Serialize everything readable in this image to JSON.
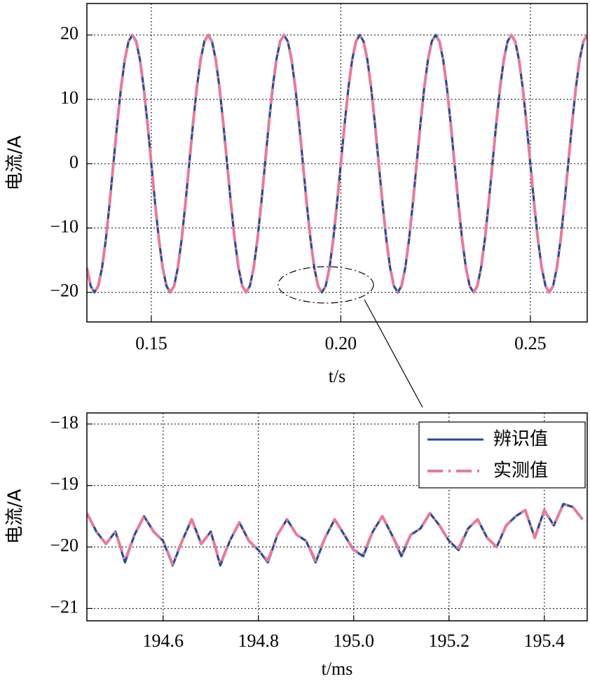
{
  "chart_data": [
    {
      "type": "line",
      "xlabel": "t/s",
      "ylabel": "电流/A",
      "x": [
        0.133,
        0.134,
        0.135,
        0.136,
        0.137,
        0.138,
        0.139,
        0.14,
        0.141,
        0.142,
        0.143,
        0.144,
        0.145,
        0.146,
        0.147,
        0.148,
        0.149,
        0.15,
        0.151,
        0.152,
        0.153,
        0.154,
        0.155,
        0.156,
        0.157,
        0.158,
        0.159,
        0.16,
        0.161,
        0.162,
        0.163,
        0.164,
        0.165,
        0.166,
        0.167,
        0.168,
        0.169,
        0.17,
        0.171,
        0.172,
        0.173,
        0.174,
        0.175,
        0.176,
        0.177,
        0.178,
        0.179,
        0.18,
        0.181,
        0.182,
        0.183,
        0.184,
        0.185,
        0.186,
        0.187,
        0.188,
        0.189,
        0.19,
        0.191,
        0.192,
        0.193,
        0.194,
        0.195,
        0.196,
        0.197,
        0.198,
        0.199,
        0.2,
        0.201,
        0.202,
        0.203,
        0.204,
        0.205,
        0.206,
        0.207,
        0.208,
        0.209,
        0.21,
        0.211,
        0.212,
        0.213,
        0.214,
        0.215,
        0.216,
        0.217,
        0.218,
        0.219,
        0.22,
        0.221,
        0.222,
        0.223,
        0.224,
        0.225,
        0.226,
        0.227,
        0.228,
        0.229,
        0.23,
        0.231,
        0.232,
        0.233,
        0.234,
        0.235,
        0.236,
        0.237,
        0.238,
        0.239,
        0.24,
        0.241,
        0.242,
        0.243,
        0.244,
        0.245,
        0.246,
        0.247,
        0.248,
        0.249,
        0.25,
        0.251,
        0.252,
        0.253,
        0.254,
        0.255,
        0.256,
        0.257,
        0.258,
        0.259,
        0.26,
        0.261,
        0.262,
        0.263,
        0.264,
        0.265
      ],
      "series": [
        {
          "color": "#1f4e96",
          "dashed": false,
          "values": [
            -16.18,
            -19.02,
            -20,
            -19.02,
            -16.18,
            -11.76,
            -6.18,
            0,
            6.18,
            11.76,
            16.18,
            19.02,
            20,
            19.02,
            16.18,
            11.76,
            6.18,
            0,
            -6.18,
            -11.76,
            -16.18,
            -19.02,
            -20,
            -19.02,
            -16.18,
            -11.76,
            -6.18,
            0,
            6.18,
            11.76,
            16.18,
            19.02,
            20,
            19.02,
            16.18,
            11.76,
            6.18,
            0,
            -6.18,
            -11.76,
            -16.18,
            -19.02,
            -20,
            -19.02,
            -16.18,
            -11.76,
            -6.18,
            0,
            6.18,
            11.76,
            16.18,
            19.02,
            20,
            19.02,
            16.18,
            11.76,
            6.18,
            0,
            -6.18,
            -11.76,
            -16.18,
            -19.02,
            -20,
            -19.02,
            -16.18,
            -11.76,
            -6.18,
            0,
            6.18,
            11.76,
            16.18,
            19.02,
            20,
            19.02,
            16.18,
            11.76,
            6.18,
            0,
            -6.18,
            -11.76,
            -16.18,
            -19.02,
            -20,
            -19.02,
            -16.18,
            -11.76,
            -6.18,
            0,
            6.18,
            11.76,
            16.18,
            19.02,
            20,
            19.02,
            16.18,
            11.76,
            6.18,
            0,
            -6.18,
            -11.76,
            -16.18,
            -19.02,
            -20,
            -19.02,
            -16.18,
            -11.76,
            -6.18,
            0,
            6.18,
            11.76,
            16.18,
            19.02,
            20,
            19.02,
            16.18,
            11.76,
            6.18,
            0,
            -6.18,
            -11.76,
            -16.18,
            -19.02,
            -20,
            -19.02,
            -16.18,
            -11.76,
            -6.18,
            0,
            6.18,
            11.76,
            16.18,
            19.02,
            20
          ]
        },
        {
          "color": "#e8799f",
          "dashed": true,
          "values": [
            -16.18,
            -19.02,
            -20,
            -19.02,
            -16.18,
            -11.76,
            -6.18,
            0,
            6.18,
            11.76,
            16.18,
            19.02,
            20,
            19.02,
            16.18,
            11.76,
            6.18,
            0,
            -6.18,
            -11.76,
            -16.18,
            -19.02,
            -20,
            -19.02,
            -16.18,
            -11.76,
            -6.18,
            0,
            6.18,
            11.76,
            16.18,
            19.02,
            20,
            19.02,
            16.18,
            11.76,
            6.18,
            0,
            -6.18,
            -11.76,
            -16.18,
            -19.02,
            -20,
            -19.02,
            -16.18,
            -11.76,
            -6.18,
            0,
            6.18,
            11.76,
            16.18,
            19.02,
            20,
            19.02,
            16.18,
            11.76,
            6.18,
            0,
            -6.18,
            -11.76,
            -16.18,
            -19.02,
            -20,
            -19.02,
            -16.18,
            -11.76,
            -6.18,
            0,
            6.18,
            11.76,
            16.18,
            19.02,
            20,
            19.02,
            16.18,
            11.76,
            6.18,
            0,
            -6.18,
            -11.76,
            -16.18,
            -19.02,
            -20,
            -19.02,
            -16.18,
            -11.76,
            -6.18,
            0,
            6.18,
            11.76,
            16.18,
            19.02,
            20,
            19.02,
            16.18,
            11.76,
            6.18,
            0,
            -6.18,
            -11.76,
            -16.18,
            -19.02,
            -20,
            -19.02,
            -16.18,
            -11.76,
            -6.18,
            0,
            6.18,
            11.76,
            16.18,
            19.02,
            20,
            19.02,
            16.18,
            11.76,
            6.18,
            0,
            -6.18,
            -11.76,
            -16.18,
            -19.02,
            -20,
            -19.02,
            -16.18,
            -11.76,
            -6.18,
            0,
            6.18,
            11.76,
            16.18,
            19.02,
            20
          ]
        }
      ],
      "xlim": [
        0.133,
        0.265
      ],
      "ylim": [
        -24.6,
        24.9
      ],
      "xticks": [
        0.15,
        {
          "value": 0.2,
          "label": "0.20"
        },
        0.25
      ],
      "yticks": [
        {
          "value": -20,
          "label": "−20"
        },
        {
          "value": -10,
          "label": "−10"
        },
        0,
        10,
        20
      ],
      "grid": true
    },
    {
      "type": "line",
      "xlabel": "t/ms",
      "ylabel": "电流/A",
      "x": [
        194.44,
        194.46,
        194.48,
        194.5,
        194.52,
        194.54,
        194.56,
        194.58,
        194.6,
        194.62,
        194.64,
        194.66,
        194.68,
        194.7,
        194.72,
        194.74,
        194.76,
        194.78,
        194.8,
        194.82,
        194.84,
        194.86,
        194.88,
        194.9,
        194.92,
        194.94,
        194.96,
        194.98,
        195,
        195.02,
        195.04,
        195.06,
        195.08,
        195.1,
        195.12,
        195.14,
        195.16,
        195.18,
        195.2,
        195.22,
        195.24,
        195.26,
        195.28,
        195.3,
        195.32,
        195.34,
        195.36,
        195.38,
        195.4,
        195.42,
        195.44,
        195.46,
        195.48
      ],
      "series": [
        {
          "name": "辨识值",
          "color": "#1f4e96",
          "dashed": false,
          "values": [
            -19.45,
            -19.75,
            -19.95,
            -19.75,
            -20.25,
            -19.8,
            -19.5,
            -19.75,
            -19.9,
            -20.3,
            -19.9,
            -19.55,
            -19.95,
            -19.75,
            -20.3,
            -19.9,
            -19.6,
            -19.9,
            -20.05,
            -20.25,
            -19.8,
            -19.55,
            -19.8,
            -19.9,
            -20.25,
            -19.85,
            -19.55,
            -19.8,
            -20.05,
            -20.15,
            -19.75,
            -19.5,
            -19.8,
            -20.15,
            -19.8,
            -19.7,
            -19.45,
            -19.65,
            -19.9,
            -20.05,
            -19.7,
            -19.55,
            -19.85,
            -20,
            -19.65,
            -19.5,
            -19.4,
            -19.85,
            -19.4,
            -19.65,
            -19.3,
            -19.35,
            -19.55
          ]
        },
        {
          "name": "实测值",
          "color": "#e8799f",
          "dashed": true,
          "values": [
            -19.45,
            -19.75,
            -19.95,
            -19.75,
            -20.22,
            -19.8,
            -19.5,
            -19.75,
            -19.9,
            -20.28,
            -19.9,
            -19.55,
            -19.95,
            -19.75,
            -20.28,
            -19.9,
            -19.6,
            -19.9,
            -20.05,
            -20.22,
            -19.8,
            -19.55,
            -19.8,
            -19.9,
            -20.22,
            -19.85,
            -19.55,
            -19.8,
            -20.05,
            -20.12,
            -19.75,
            -19.5,
            -19.8,
            -20.12,
            -19.8,
            -19.7,
            -19.45,
            -19.65,
            -19.9,
            -20.02,
            -19.7,
            -19.55,
            -19.85,
            -20,
            -19.65,
            -19.5,
            -19.4,
            -19.85,
            -19.4,
            -19.65,
            -19.3,
            -19.35,
            -19.55
          ]
        }
      ],
      "xlim": [
        194.44,
        195.49
      ],
      "ylim": [
        -21.2,
        -17.82
      ],
      "xticks": [
        194.6,
        194.8,
        {
          "value": 195,
          "label": "195.0"
        },
        195.2,
        195.4
      ],
      "yticks": [
        {
          "value": -21,
          "label": "−21"
        },
        {
          "value": -20,
          "label": "−20"
        },
        {
          "value": -19,
          "label": "−19"
        },
        {
          "value": -18,
          "label": "−18"
        }
      ],
      "grid": true,
      "legend": "upper right"
    }
  ]
}
